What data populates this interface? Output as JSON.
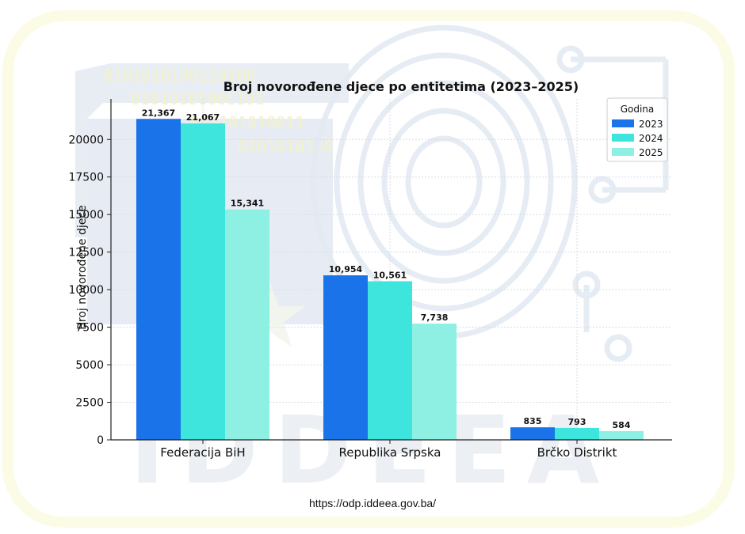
{
  "source_url": "https://odp.iddeea.gov.ba/",
  "watermark": {
    "text": "IDDEEA",
    "color": "#dfe5ee",
    "binary_text": "0101010100110100110100"
  },
  "colors": {
    "series": [
      "#1a73e8",
      "#3ee5dc",
      "#8df0e2"
    ],
    "text": "#111111",
    "grid": "#d5dde6",
    "axis": "#222222"
  },
  "chart_data": {
    "type": "bar",
    "title": "Broj novorođene djece po entitetima (2023–2025)",
    "xlabel": "",
    "ylabel": "Broj novorođene djece",
    "categories": [
      "Federacija BiH",
      "Republika Srpska",
      "Brčko Distrikt"
    ],
    "series": [
      {
        "name": "2023",
        "values": [
          21367,
          10954,
          835
        ],
        "labels": [
          "21,367",
          "10,954",
          "835"
        ]
      },
      {
        "name": "2024",
        "values": [
          21067,
          10561,
          793
        ],
        "labels": [
          "21,067",
          "10,561",
          "793"
        ]
      },
      {
        "name": "2025",
        "values": [
          15341,
          7738,
          584
        ],
        "labels": [
          "15,341",
          "7,738",
          "584"
        ]
      }
    ],
    "ylim": [
      0,
      22700
    ],
    "yticks": [
      0,
      2500,
      5000,
      7500,
      10000,
      12500,
      15000,
      17500,
      20000
    ],
    "ytick_labels": [
      "0",
      "2500",
      "5000",
      "7500",
      "10000",
      "12500",
      "15000",
      "17500",
      "20000"
    ],
    "legend": {
      "title": "Godina",
      "position": "top-right"
    },
    "grid": true
  }
}
